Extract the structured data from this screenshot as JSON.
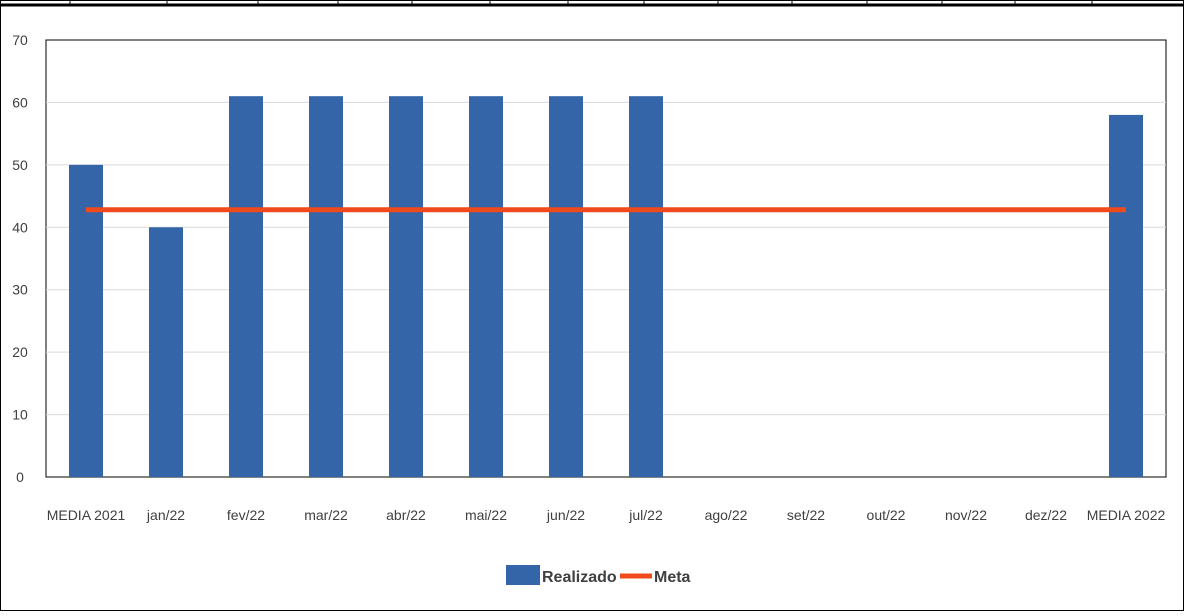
{
  "colors": {
    "realizado": "#3465a8",
    "meta": "#f04a1c",
    "grid": "#d9d9d9",
    "text": "#404040",
    "frame": "#000000"
  },
  "chart_data": {
    "type": "bar",
    "title": "",
    "xlabel": "",
    "ylabel": "",
    "ylim": [
      0,
      70
    ],
    "yticks": [
      0,
      10,
      20,
      30,
      40,
      50,
      60,
      70
    ],
    "grid": true,
    "legend_position": "bottom",
    "categories": [
      "MEDIA 2021",
      "jan/22",
      "fev/22",
      "mar/22",
      "abr/22",
      "mai/22",
      "jun/22",
      "jul/22",
      "ago/22",
      "set/22",
      "out/22",
      "nov/22",
      "dez/22",
      "MEDIA 2022"
    ],
    "series": [
      {
        "name": "Realizado",
        "type": "bar",
        "values": [
          50,
          40,
          61,
          61,
          61,
          61,
          61,
          61,
          null,
          null,
          null,
          null,
          null,
          58
        ]
      },
      {
        "name": "Meta",
        "type": "line",
        "values": [
          42.8,
          42.8,
          42.8,
          42.8,
          42.8,
          42.8,
          42.8,
          42.8,
          42.8,
          42.8,
          42.8,
          42.8,
          42.8,
          42.8
        ]
      }
    ]
  }
}
